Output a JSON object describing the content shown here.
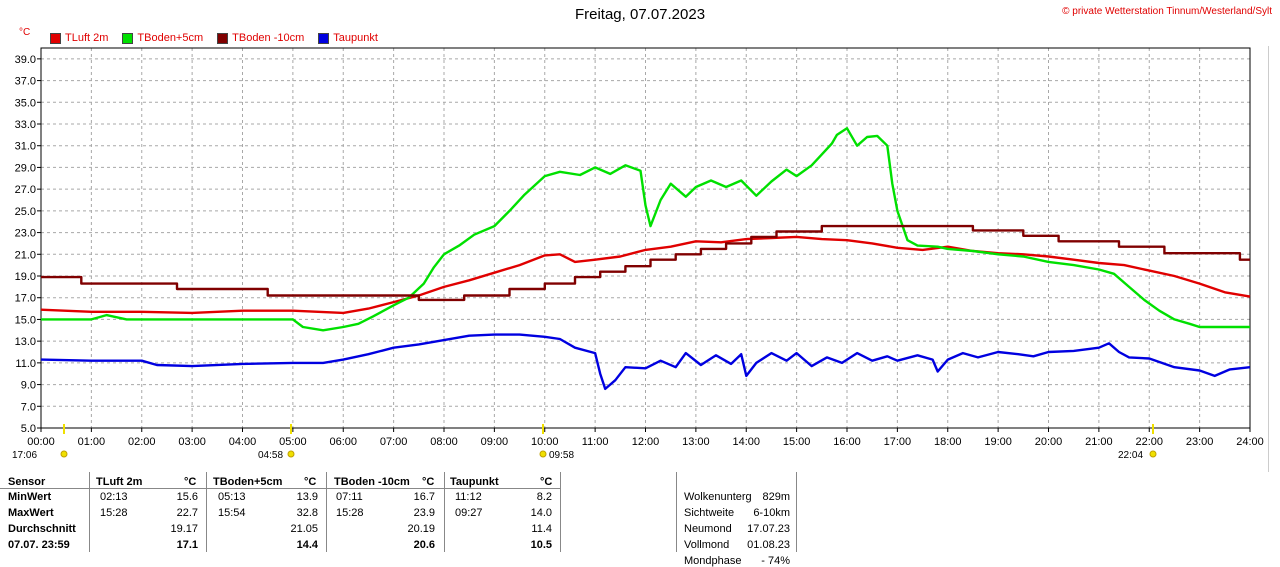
{
  "title": "Freitag, 07.07.2023",
  "copyright": "© private Wetterstation Tinnum/Westerland/Sylt",
  "unit": "°C",
  "colors": {
    "tluft": "#e00000",
    "tboden5": "#00e000",
    "tboden10": "#800000",
    "taupunkt": "#0000e0",
    "grid": "#a8a8a8",
    "marker": "#f0e000"
  },
  "chart_data": {
    "type": "line",
    "ylim": [
      5.0,
      40.0
    ],
    "xlim": [
      0,
      24
    ],
    "grid": true,
    "y_ticks": [
      "5.0",
      "7.0",
      "9.0",
      "11.0",
      "13.0",
      "15.0",
      "17.0",
      "19.0",
      "21.0",
      "23.0",
      "25.0",
      "27.0",
      "29.0",
      "31.0",
      "33.0",
      "35.0",
      "37.0",
      "39.0"
    ],
    "x_ticks": [
      "00:00",
      "01:00",
      "02:00",
      "03:00",
      "04:00",
      "05:00",
      "06:00",
      "07:00",
      "08:00",
      "09:00",
      "10:00",
      "11:00",
      "12:00",
      "13:00",
      "14:00",
      "15:00",
      "16:00",
      "17:00",
      "18:00",
      "19:00",
      "20:00",
      "21:00",
      "22:00",
      "23:00",
      "24:00"
    ],
    "series": [
      {
        "name": "TLuft 2m",
        "color": "#e00000",
        "points": [
          [
            0,
            15.9
          ],
          [
            1,
            15.7
          ],
          [
            2,
            15.7
          ],
          [
            3,
            15.6
          ],
          [
            4,
            15.8
          ],
          [
            5,
            15.8
          ],
          [
            6,
            15.6
          ],
          [
            6.5,
            16.0
          ],
          [
            7,
            16.6
          ],
          [
            7.5,
            17.2
          ],
          [
            8,
            18.0
          ],
          [
            8.5,
            18.6
          ],
          [
            9,
            19.3
          ],
          [
            9.5,
            20.0
          ],
          [
            10,
            20.9
          ],
          [
            10.3,
            21.0
          ],
          [
            10.6,
            20.3
          ],
          [
            11,
            20.5
          ],
          [
            11.5,
            20.8
          ],
          [
            12,
            21.4
          ],
          [
            12.5,
            21.7
          ],
          [
            13,
            22.2
          ],
          [
            13.5,
            22.1
          ],
          [
            14,
            22.4
          ],
          [
            14.5,
            22.5
          ],
          [
            15,
            22.6
          ],
          [
            15.5,
            22.4
          ],
          [
            16,
            22.3
          ],
          [
            16.5,
            22.0
          ],
          [
            17,
            21.6
          ],
          [
            17.5,
            21.4
          ],
          [
            18,
            21.7
          ],
          [
            18.5,
            21.3
          ],
          [
            19,
            21.1
          ],
          [
            19.5,
            21.0
          ],
          [
            20,
            20.8
          ],
          [
            20.5,
            20.5
          ],
          [
            21,
            20.2
          ],
          [
            21.5,
            20.0
          ],
          [
            22,
            19.5
          ],
          [
            22.5,
            19.0
          ],
          [
            23,
            18.3
          ],
          [
            23.5,
            17.5
          ],
          [
            24,
            17.1
          ]
        ]
      },
      {
        "name": "TBoden+5cm",
        "color": "#00e000",
        "points": [
          [
            0,
            15.0
          ],
          [
            1,
            15.0
          ],
          [
            1.3,
            15.4
          ],
          [
            1.7,
            15.0
          ],
          [
            2,
            15.0
          ],
          [
            3,
            15.0
          ],
          [
            4,
            15.0
          ],
          [
            5,
            15.0
          ],
          [
            5.2,
            14.3
          ],
          [
            5.6,
            14.0
          ],
          [
            6,
            14.3
          ],
          [
            6.3,
            14.6
          ],
          [
            6.6,
            15.3
          ],
          [
            7,
            16.3
          ],
          [
            7.3,
            17.0
          ],
          [
            7.6,
            18.3
          ],
          [
            7.8,
            19.8
          ],
          [
            8,
            21.0
          ],
          [
            8.3,
            21.8
          ],
          [
            8.6,
            22.8
          ],
          [
            9,
            23.6
          ],
          [
            9.3,
            25.0
          ],
          [
            9.6,
            26.5
          ],
          [
            10,
            28.2
          ],
          [
            10.3,
            28.6
          ],
          [
            10.7,
            28.3
          ],
          [
            11,
            29.0
          ],
          [
            11.3,
            28.4
          ],
          [
            11.6,
            29.2
          ],
          [
            11.9,
            28.7
          ],
          [
            12,
            25.5
          ],
          [
            12.1,
            23.6
          ],
          [
            12.3,
            26.0
          ],
          [
            12.5,
            27.5
          ],
          [
            12.8,
            26.3
          ],
          [
            13,
            27.2
          ],
          [
            13.3,
            27.8
          ],
          [
            13.6,
            27.2
          ],
          [
            13.9,
            27.8
          ],
          [
            14.2,
            26.4
          ],
          [
            14.5,
            27.7
          ],
          [
            14.8,
            28.8
          ],
          [
            15.0,
            28.2
          ],
          [
            15.3,
            29.2
          ],
          [
            15.5,
            30.2
          ],
          [
            15.7,
            31.2
          ],
          [
            15.8,
            32.0
          ],
          [
            16.0,
            32.6
          ],
          [
            16.2,
            31.0
          ],
          [
            16.4,
            31.8
          ],
          [
            16.6,
            31.9
          ],
          [
            16.8,
            31.0
          ],
          [
            16.9,
            27.5
          ],
          [
            17.0,
            25.0
          ],
          [
            17.2,
            22.3
          ],
          [
            17.4,
            21.8
          ],
          [
            17.8,
            21.7
          ],
          [
            18,
            21.5
          ],
          [
            18.5,
            21.3
          ],
          [
            19,
            21.0
          ],
          [
            19.5,
            20.8
          ],
          [
            20,
            20.3
          ],
          [
            20.5,
            20.0
          ],
          [
            21,
            19.6
          ],
          [
            21.3,
            19.2
          ],
          [
            21.6,
            18.0
          ],
          [
            21.9,
            16.8
          ],
          [
            22.2,
            15.8
          ],
          [
            22.5,
            15.0
          ],
          [
            22.8,
            14.6
          ],
          [
            23,
            14.3
          ],
          [
            23.5,
            14.3
          ],
          [
            24,
            14.3
          ]
        ]
      },
      {
        "name": "TBoden -10cm",
        "color": "#800000",
        "points": [
          [
            0,
            18.9
          ],
          [
            0.8,
            18.9
          ],
          [
            0.8,
            18.3
          ],
          [
            2.7,
            18.3
          ],
          [
            2.7,
            17.8
          ],
          [
            4.5,
            17.8
          ],
          [
            4.5,
            17.2
          ],
          [
            7.5,
            17.2
          ],
          [
            7.5,
            16.8
          ],
          [
            8.4,
            16.8
          ],
          [
            8.4,
            17.2
          ],
          [
            9.3,
            17.2
          ],
          [
            9.3,
            17.8
          ],
          [
            10,
            17.8
          ],
          [
            10,
            18.3
          ],
          [
            10.6,
            18.3
          ],
          [
            10.6,
            18.9
          ],
          [
            11.1,
            18.9
          ],
          [
            11.1,
            19.4
          ],
          [
            11.6,
            19.4
          ],
          [
            11.6,
            19.9
          ],
          [
            12.1,
            19.9
          ],
          [
            12.1,
            20.5
          ],
          [
            12.6,
            20.5
          ],
          [
            12.6,
            21.0
          ],
          [
            13.1,
            21.0
          ],
          [
            13.1,
            21.5
          ],
          [
            13.6,
            21.5
          ],
          [
            13.6,
            22.0
          ],
          [
            14.1,
            22.0
          ],
          [
            14.1,
            22.6
          ],
          [
            14.6,
            22.6
          ],
          [
            14.6,
            23.1
          ],
          [
            15.5,
            23.1
          ],
          [
            15.5,
            23.6
          ],
          [
            18.5,
            23.6
          ],
          [
            18.5,
            23.2
          ],
          [
            19.5,
            23.2
          ],
          [
            19.5,
            22.7
          ],
          [
            20.2,
            22.7
          ],
          [
            20.2,
            22.2
          ],
          [
            21.4,
            22.2
          ],
          [
            21.4,
            21.7
          ],
          [
            22.3,
            21.7
          ],
          [
            22.3,
            21.1
          ],
          [
            23.8,
            21.1
          ],
          [
            23.8,
            20.5
          ],
          [
            24,
            20.5
          ]
        ]
      },
      {
        "name": "Taupunkt",
        "color": "#0000e0",
        "points": [
          [
            0,
            11.3
          ],
          [
            1,
            11.2
          ],
          [
            1.5,
            11.2
          ],
          [
            2,
            11.2
          ],
          [
            2.3,
            10.8
          ],
          [
            3,
            10.7
          ],
          [
            4,
            10.9
          ],
          [
            5,
            11.0
          ],
          [
            5.6,
            11.0
          ],
          [
            6,
            11.3
          ],
          [
            6.5,
            11.8
          ],
          [
            7,
            12.4
          ],
          [
            7.5,
            12.7
          ],
          [
            8,
            13.1
          ],
          [
            8.5,
            13.5
          ],
          [
            9,
            13.6
          ],
          [
            9.5,
            13.6
          ],
          [
            10,
            13.4
          ],
          [
            10.3,
            13.2
          ],
          [
            10.6,
            12.4
          ],
          [
            11,
            11.9
          ],
          [
            11.1,
            10.0
          ],
          [
            11.2,
            8.6
          ],
          [
            11.4,
            9.4
          ],
          [
            11.6,
            10.6
          ],
          [
            12,
            10.5
          ],
          [
            12.3,
            11.2
          ],
          [
            12.6,
            10.6
          ],
          [
            12.8,
            11.9
          ],
          [
            13.1,
            10.8
          ],
          [
            13.4,
            11.7
          ],
          [
            13.7,
            10.9
          ],
          [
            13.9,
            11.8
          ],
          [
            14.0,
            9.8
          ],
          [
            14.2,
            11.0
          ],
          [
            14.5,
            11.9
          ],
          [
            14.8,
            11.2
          ],
          [
            15,
            11.9
          ],
          [
            15.3,
            10.7
          ],
          [
            15.6,
            11.5
          ],
          [
            15.9,
            11.0
          ],
          [
            16.2,
            11.9
          ],
          [
            16.5,
            11.2
          ],
          [
            16.8,
            11.6
          ],
          [
            17,
            11.2
          ],
          [
            17.4,
            11.7
          ],
          [
            17.7,
            11.3
          ],
          [
            17.8,
            10.2
          ],
          [
            18,
            11.3
          ],
          [
            18.3,
            11.9
          ],
          [
            18.6,
            11.5
          ],
          [
            19,
            12.0
          ],
          [
            19.4,
            11.8
          ],
          [
            19.7,
            11.6
          ],
          [
            20,
            12.0
          ],
          [
            20.5,
            12.1
          ],
          [
            21,
            12.4
          ],
          [
            21.2,
            12.8
          ],
          [
            21.4,
            12.0
          ],
          [
            21.6,
            11.5
          ],
          [
            22,
            11.4
          ],
          [
            22.5,
            10.6
          ],
          [
            23,
            10.3
          ],
          [
            23.3,
            9.8
          ],
          [
            23.6,
            10.4
          ],
          [
            24,
            10.6
          ]
        ]
      }
    ]
  },
  "markers": [
    {
      "time": "17:06",
      "pos": "00:28"
    },
    {
      "time": "04:58",
      "pos": "05:00"
    },
    {
      "time": "09:58",
      "pos": "10:00"
    },
    {
      "time": "22:04",
      "pos": "22:04"
    }
  ],
  "stats": {
    "headers": [
      "Sensor",
      "TLuft 2m",
      "°C",
      "TBoden+5cm",
      "°C",
      "TBoden -10cm",
      "°C",
      "Taupunkt",
      "°C"
    ],
    "rows": [
      {
        "label": "MinWert",
        "cells": [
          "02:13",
          "15.6",
          "05:13",
          "13.9",
          "07:11",
          "16.7",
          "11:12",
          "8.2"
        ]
      },
      {
        "label": "MaxWert",
        "cells": [
          "15:28",
          "22.7",
          "15:54",
          "32.8",
          "15:28",
          "23.9",
          "09:27",
          "14.0"
        ]
      },
      {
        "label": "Durchschnitt",
        "cells": [
          "",
          "19.17",
          "",
          "21.05",
          "",
          "20.19",
          "",
          "11.4"
        ]
      },
      {
        "label": "07.07. 23:59",
        "cells": [
          "",
          "17.1",
          "",
          "14.4",
          "",
          "20.6",
          "",
          "10.5"
        ]
      }
    ]
  },
  "info": [
    {
      "label": "Wolkenunterg",
      "value": "829m"
    },
    {
      "label": "Sichtweite",
      "value": "6-10km"
    },
    {
      "label": "Neumond",
      "value": "17.07.23"
    },
    {
      "label": "Vollmond",
      "value": "01.08.23"
    },
    {
      "label": "Mondphase",
      "value": "- 74%"
    }
  ]
}
